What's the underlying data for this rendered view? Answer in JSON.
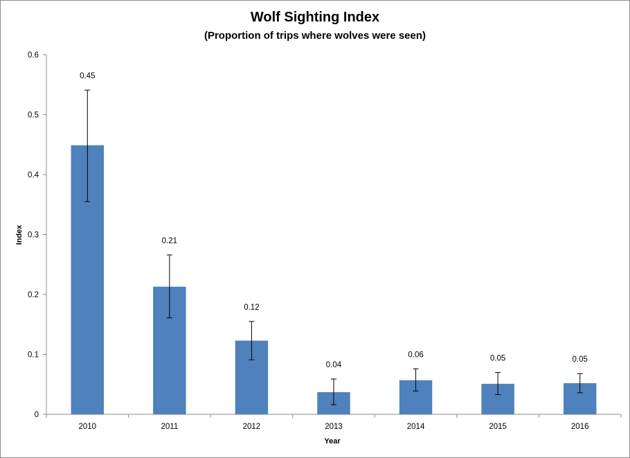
{
  "chart_data": {
    "type": "bar",
    "title": "Wolf Sighting Index",
    "subtitle": "(Proportion of trips where wolves were seen)",
    "xlabel": "Year",
    "ylabel": "Index",
    "categories": [
      "2010",
      "2011",
      "2012",
      "2013",
      "2014",
      "2015",
      "2016"
    ],
    "values": [
      0.449,
      0.213,
      0.123,
      0.037,
      0.057,
      0.051,
      0.052
    ],
    "data_labels": [
      "0.45",
      "0.21",
      "0.12",
      "0.04",
      "0.06",
      "0.05",
      "0.05"
    ],
    "error_low": [
      0.355,
      0.161,
      0.091,
      0.016,
      0.039,
      0.033,
      0.036
    ],
    "error_high": [
      0.541,
      0.266,
      0.155,
      0.059,
      0.076,
      0.07,
      0.068
    ],
    "ylim": [
      0,
      0.6
    ],
    "yticks": [
      "0",
      "0.1",
      "0.2",
      "0.3",
      "0.4",
      "0.5",
      "0.6"
    ],
    "bar_color": "#4f81bd",
    "grid": false,
    "legend": "none"
  }
}
